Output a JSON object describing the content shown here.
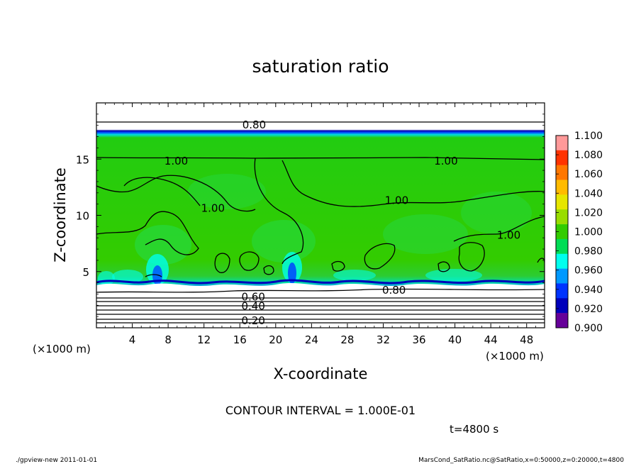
{
  "chart_data": {
    "type": "heatmap",
    "title": "saturation ratio",
    "xlabel": "X-coordinate",
    "ylabel": "Z-coordinate",
    "x_unit_left": "(×1000 m)",
    "x_unit_right": "(×1000 m)",
    "xlim": [
      0,
      50
    ],
    "ylim": [
      0,
      20
    ],
    "x_ticks": [
      4,
      8,
      12,
      16,
      20,
      24,
      28,
      32,
      36,
      40,
      44,
      48
    ],
    "y_ticks": [
      5,
      10,
      15
    ],
    "colorbar": {
      "ticks": [
        "1.100",
        "1.080",
        "1.060",
        "1.040",
        "1.020",
        "1.000",
        "0.980",
        "0.960",
        "0.940",
        "0.920",
        "0.900"
      ],
      "colors": [
        "#ff9999",
        "#ff3300",
        "#ff7700",
        "#ffbb00",
        "#e6e600",
        "#99dd00",
        "#33cc00",
        "#00dd55",
        "#00ffee",
        "#0099ff",
        "#0033ff",
        "#0000bb",
        "#660099"
      ]
    },
    "contour_labels": [
      {
        "text": "0.80",
        "x": 17.6,
        "z": 18.1
      },
      {
        "text": "1.00",
        "x": 8.9,
        "z": 14.9
      },
      {
        "text": "1.00",
        "x": 39.0,
        "z": 14.9
      },
      {
        "text": "1.00",
        "x": 13.0,
        "z": 10.7
      },
      {
        "text": "1.00",
        "x": 33.5,
        "z": 11.4
      },
      {
        "text": "1.00",
        "x": 46.0,
        "z": 8.3
      },
      {
        "text": "0.80",
        "x": 33.2,
        "z": 3.4
      },
      {
        "text": "0.60",
        "x": 17.5,
        "z": 2.8
      },
      {
        "text": "0.40",
        "x": 17.5,
        "z": 2.0
      },
      {
        "text": "0.20",
        "x": 17.5,
        "z": 0.7
      }
    ],
    "contour_interval": "CONTOUR INTERVAL = 1.000E-01",
    "time_label": "t=4800 s"
  },
  "footer": {
    "left": "./gpview-new   2011-01-01",
    "right": "MarsCond_SatRatio.nc@SatRatio,x=0:50000,z=0:20000,t=4800"
  }
}
